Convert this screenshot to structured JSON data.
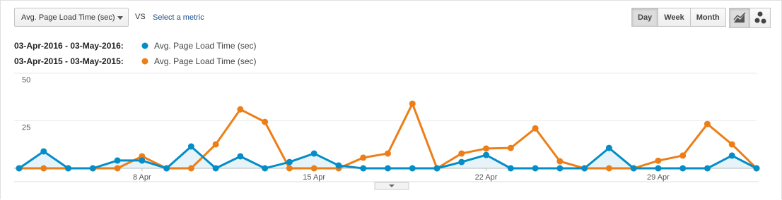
{
  "toolbar": {
    "metric": "Avg. Page Load Time (sec)",
    "vs": "VS",
    "select_metric": "Select a metric",
    "buttons": [
      "Day",
      "Week",
      "Month"
    ]
  },
  "chart_data": {
    "type": "line",
    "categories": [
      null,
      null,
      null,
      null,
      null,
      "8 Apr",
      null,
      null,
      null,
      null,
      null,
      null,
      "15 Apr",
      null,
      null,
      null,
      null,
      null,
      null,
      "22 Apr",
      null,
      null,
      null,
      null,
      null,
      null,
      "29 Apr",
      null,
      null,
      null,
      null
    ],
    "series": [
      {
        "range": "03-Apr-2016 - 03-May-2016:",
        "name": "Avg. Page Load Time (sec)",
        "color": "#058dc7",
        "area": true,
        "values": [
          0,
          8.9,
          0,
          0,
          4.1,
          4.1,
          0,
          11.5,
          0,
          6.3,
          0,
          3.3,
          7.8,
          1.5,
          0,
          0,
          0,
          0,
          3.3,
          7,
          0,
          0,
          0,
          0,
          10.7,
          0,
          0,
          0,
          0,
          6.7,
          0
        ]
      },
      {
        "range": "03-Apr-2015 - 03-May-2015:",
        "name": "Avg. Page Load Time (sec)",
        "color": "#ed7e17",
        "area": false,
        "values": [
          0,
          0,
          0,
          0,
          0,
          6.3,
          0,
          0,
          12.6,
          31,
          24.4,
          0,
          0,
          0,
          5.6,
          7.8,
          34,
          0,
          7.8,
          10.4,
          10.7,
          21,
          3.7,
          0,
          0,
          0,
          4,
          6.7,
          23.3,
          12.6,
          0
        ]
      }
    ],
    "ylim": [
      0,
      50
    ],
    "yticks": [
      25,
      50
    ],
    "grid": true
  }
}
